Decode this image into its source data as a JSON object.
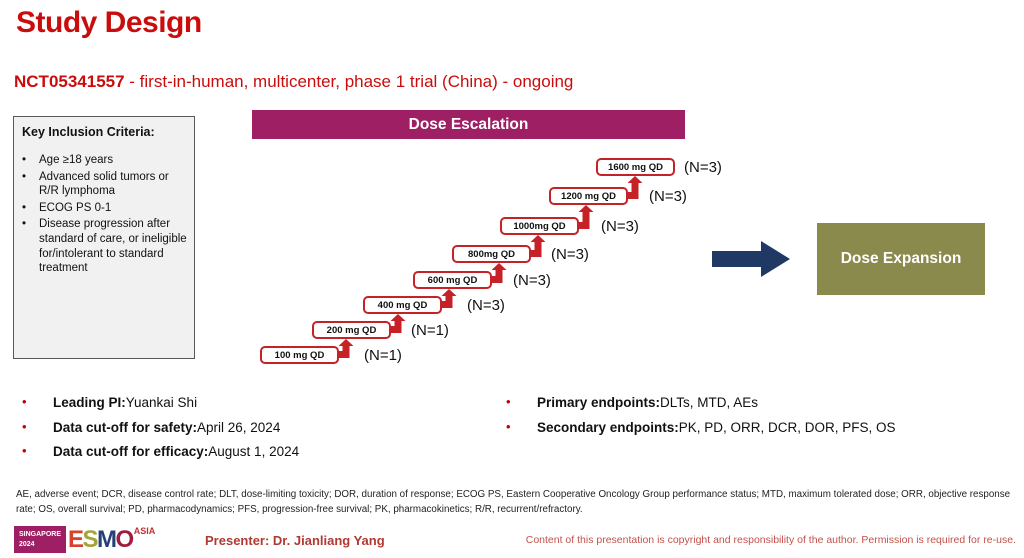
{
  "slide": {
    "title": "Study Design",
    "subtitle_id": "NCT05341557",
    "subtitle_rest": " - first-in-human, multicenter, phase 1 trial (China) - ongoing"
  },
  "inclusion": {
    "heading": "Key Inclusion Criteria:",
    "items": [
      "Age ≥18 years",
      "Advanced solid tumors or R/R lymphoma",
      "ECOG PS 0-1",
      "Disease progression after standard of care, or ineligible for/intolerant to standard treatment"
    ]
  },
  "escalation": {
    "header": "Dose Escalation",
    "steps": [
      {
        "dose": "100 mg QD",
        "n": "(N=1)"
      },
      {
        "dose": "200 mg QD",
        "n": "(N=1)"
      },
      {
        "dose": "400 mg QD",
        "n": "(N=3)"
      },
      {
        "dose": "600 mg QD",
        "n": "(N=3)"
      },
      {
        "dose": "800mg QD",
        "n": "(N=3)"
      },
      {
        "dose": "1000mg QD",
        "n": "(N=3)"
      },
      {
        "dose": "1200 mg QD",
        "n": "(N=3)"
      },
      {
        "dose": "1600 mg QD",
        "n": "(N=3)"
      }
    ]
  },
  "expansion": {
    "label": "Dose Expansion"
  },
  "details": {
    "left": [
      {
        "label": "Leading PI:",
        "value": " Yuankai Shi"
      },
      {
        "label": "Data cut-off for safety:",
        "value": " April 26, 2024"
      },
      {
        "label": "Data cut-off for efficacy:",
        "value": " August 1, 2024"
      }
    ],
    "right": [
      {
        "label": "Primary endpoints:",
        "value": " DLTs, MTD, AEs"
      },
      {
        "label": "Secondary endpoints:",
        "value": " PK, PD, ORR, DCR, DOR, PFS, OS"
      }
    ]
  },
  "footnote": "AE, adverse event; DCR, disease control rate; DLT, dose-limiting toxicity; DOR, duration of response; ECOG PS, Eastern Cooperative Oncology Group performance status; MTD, maximum tolerated dose;  ORR, objective response rate; OS, overall survival; PD, pharmacodynamics; PFS, progression-free survival; PK, pharmacokinetics; R/R, recurrent/refractory.",
  "footer": {
    "logo": {
      "event": "SINGAPORE",
      "year": "2024",
      "letters": [
        "E",
        "S",
        "M",
        "O"
      ],
      "region": "ASIA"
    },
    "presenter": "Presenter: Dr. Jianliang Yang",
    "copyright": "Content of this presentation is copyright and responsibility of the author. Permission is required for re-use."
  },
  "colors": {
    "title_red": "#C90D0D",
    "escalation_bar": "#9E1F63",
    "dose_box_border": "#C52127",
    "transition_arrow": "#1F3864",
    "expansion_olive": "#8B8A4D",
    "footer_red": "#C4524B"
  }
}
